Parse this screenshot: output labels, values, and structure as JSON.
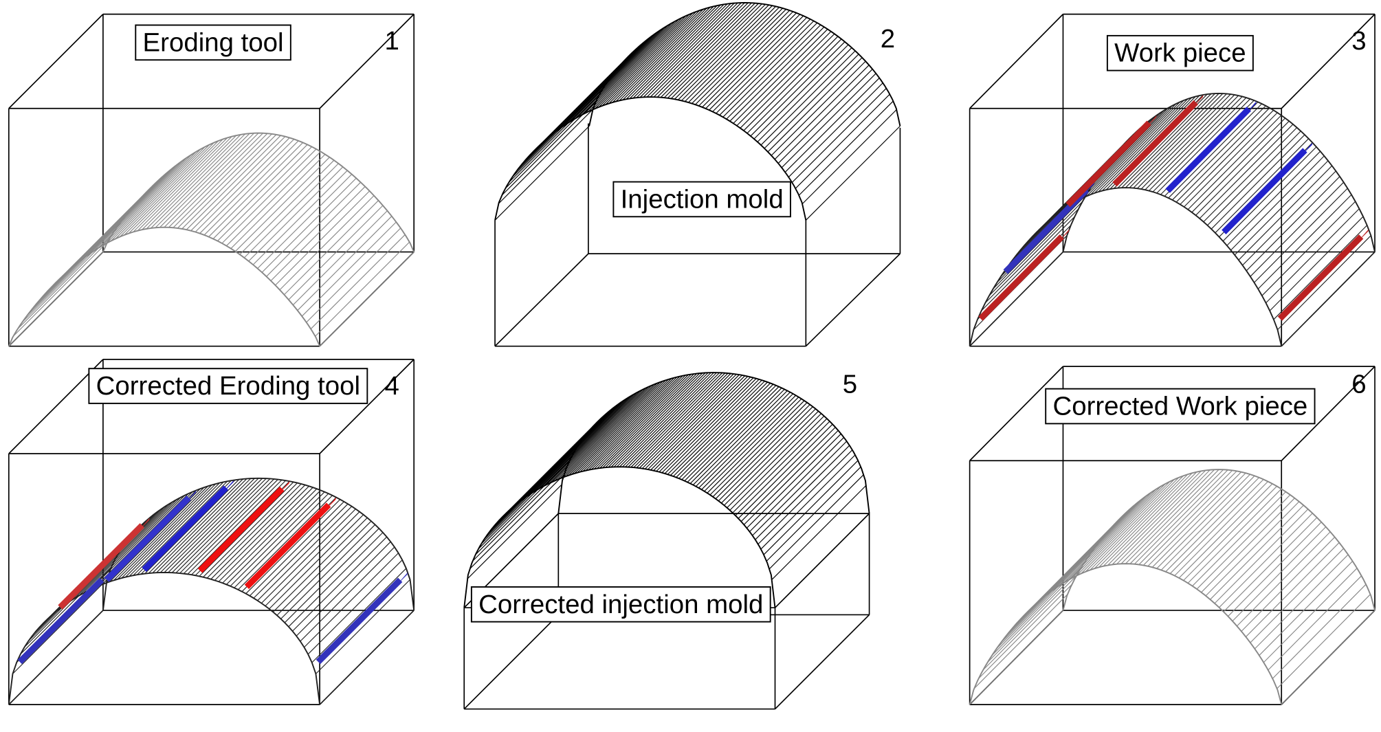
{
  "panels": [
    {
      "number": "1",
      "label": "Eroding tool"
    },
    {
      "number": "2",
      "label": "Injection mold"
    },
    {
      "number": "3",
      "label": "Work piece"
    },
    {
      "number": "4",
      "label": "Corrected Eroding tool"
    },
    {
      "number": "5",
      "label": "Corrected injection mold"
    },
    {
      "number": "6",
      "label": "Corrected Work piece"
    }
  ]
}
